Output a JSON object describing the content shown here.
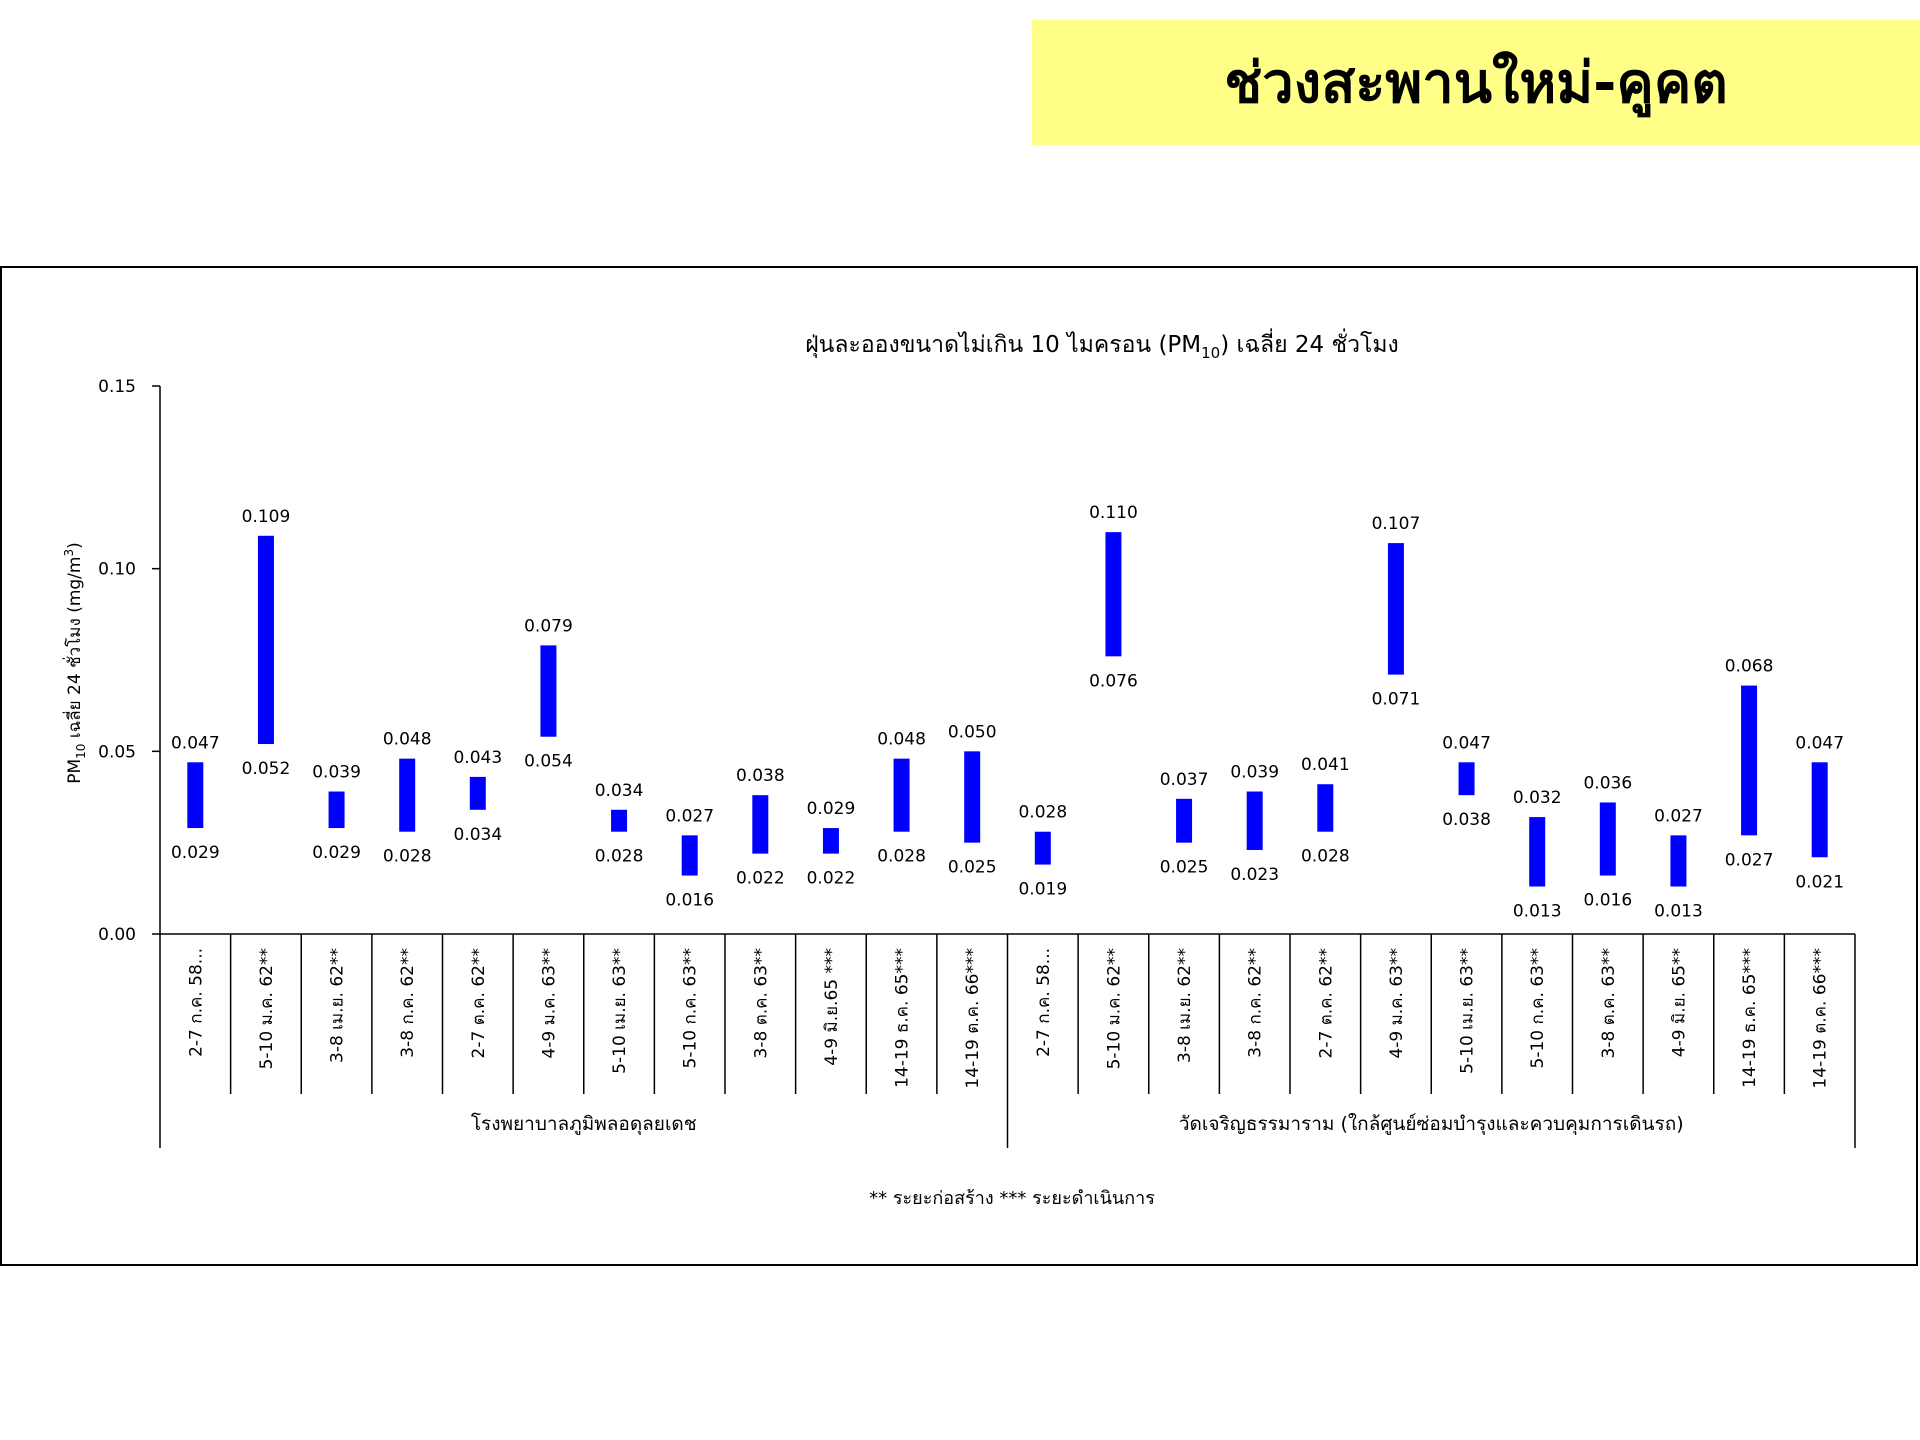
{
  "header": {
    "title": "ช่วงสะพานใหม่-คูคต"
  },
  "chart_data": {
    "type": "bar",
    "title": "ฝุ่นละอองขนาดไม่เกิน 10 ไมครอน (PM10) เฉลี่ย 24 ชั่วโมง",
    "ylabel": "PM10 เฉลี่ย 24 ชั่วโมง (mg/m3)",
    "ylim": [
      0,
      0.15
    ],
    "yticks": [
      "0.00",
      "0.05",
      "0.10",
      "0.15"
    ],
    "bar_color": "#0000ff",
    "groups": [
      {
        "name": "โรงพยาบาลภูมิพลอดุลยเดช",
        "categories": [
          "2-7 ก.ค. 58...",
          "5-10 ม.ค. 62**",
          "3-8 เม.ย. 62**",
          "3-8 ก.ค. 62**",
          "2-7 ต.ค. 62**",
          "4-9 ม.ค. 63**",
          "5-10 เม.ย. 63**",
          "5-10 ก.ค. 63**",
          "3-8 ต.ค. 63**",
          "4-9 มิ.ย.65 ***",
          "14-19 ธ.ค. 65***",
          "14-19 ต.ค. 66***"
        ],
        "min": [
          0.029,
          0.052,
          0.029,
          0.028,
          0.034,
          0.054,
          0.028,
          0.016,
          0.022,
          0.022,
          0.028,
          0.025
        ],
        "max": [
          0.047,
          0.109,
          0.039,
          0.048,
          0.043,
          0.079,
          0.034,
          0.027,
          0.038,
          0.029,
          0.048,
          0.05
        ],
        "min_labels": [
          "0.029",
          "0.052",
          "0.029",
          "0.028",
          "0.034",
          "0.054",
          "0.028",
          "0.016",
          "0.022",
          "0.022",
          "0.028",
          "0.025"
        ],
        "max_labels": [
          "0.047",
          "0.109",
          "0.039",
          "0.048",
          "0.043",
          "0.079",
          "0.034",
          "0.027",
          "0.038",
          "0.029",
          "0.048",
          "0.050"
        ]
      },
      {
        "name": "วัดเจริญธรรมาราม (ใกล้ศูนย์ซ่อมบำรุงและควบคุมการเดินรถ)",
        "categories": [
          "2-7 ก.ค. 58...",
          "5-10 ม.ค. 62**",
          "3-8 เม.ย. 62**",
          "3-8 ก.ค. 62**",
          "2-7 ต.ค. 62**",
          "4-9 ม.ค. 63**",
          "5-10 เม.ย. 63**",
          "5-10 ก.ค. 63**",
          "3-8 ต.ค. 63**",
          "4-9 มิ.ย. 65**",
          "14-19 ธ.ค. 65***",
          "14-19 ต.ค. 66***"
        ],
        "min": [
          0.019,
          0.076,
          0.025,
          0.023,
          0.028,
          0.071,
          0.038,
          0.013,
          0.016,
          0.013,
          0.027,
          0.021
        ],
        "max": [
          0.028,
          0.11,
          0.037,
          0.039,
          0.041,
          0.107,
          0.047,
          0.032,
          0.036,
          0.027,
          0.068,
          0.047
        ],
        "min_labels": [
          "0.019",
          "0.076",
          "0.025",
          "0.023",
          "0.028",
          "0.071",
          "0.038",
          "0.013",
          "0.016",
          "0.013",
          "0.027",
          "0.021"
        ],
        "max_labels": [
          "0.028",
          "0.110",
          "0.037",
          "0.039",
          "0.041",
          "0.107",
          "0.047",
          "0.032",
          "0.036",
          "0.027",
          "0.068",
          "0.047"
        ]
      }
    ],
    "legend_note": "** ระยะก่อสร้าง   *** ระยะดำเนินการ"
  }
}
